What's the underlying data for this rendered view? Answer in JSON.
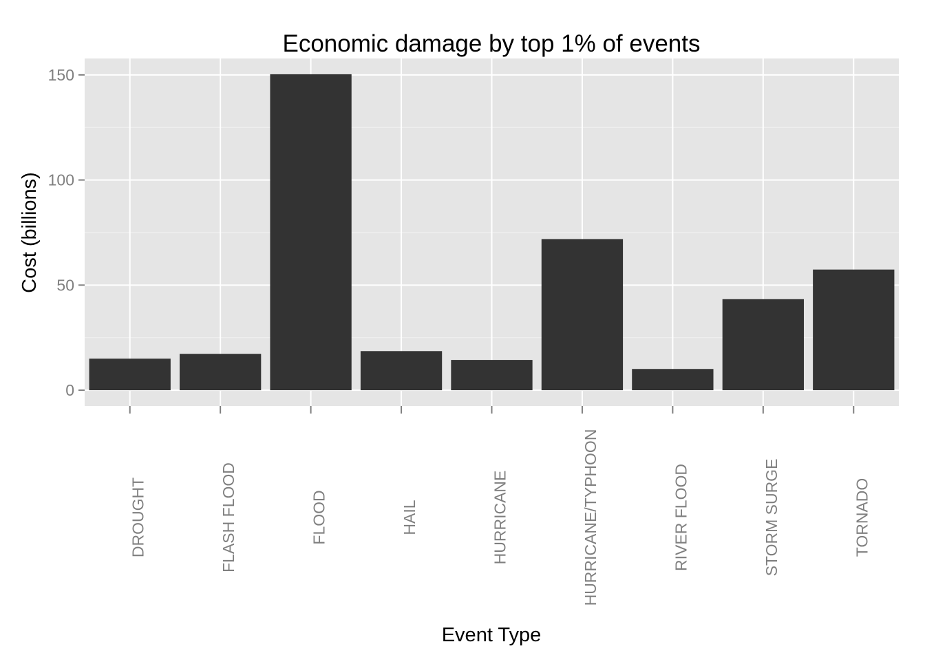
{
  "chart_data": {
    "type": "bar",
    "title": "Economic damage by top 1% of events",
    "xlabel": "Event Type",
    "ylabel": "Cost (billions)",
    "categories": [
      "DROUGHT",
      "FLASH FLOOD",
      "FLOOD",
      "HAIL",
      "HURRICANE",
      "HURRICANE/TYPHOON",
      "RIVER FLOOD",
      "STORM SURGE",
      "TORNADO"
    ],
    "values": [
      15.0,
      17.3,
      150.3,
      18.6,
      14.4,
      71.9,
      10.1,
      43.3,
      57.4
    ],
    "ylim": [
      -7.5,
      157.8
    ],
    "yticks": [
      0,
      50,
      100,
      150
    ],
    "ytick_labels": [
      "0",
      "50",
      "100",
      "150"
    ],
    "grid": true,
    "legend": "none",
    "colors": {
      "bar": "#333333",
      "panel_background": "#e5e5e5",
      "grid_major": "#ffffff",
      "grid_minor": "#f2f2f2",
      "tick_label": "#7f7f7f",
      "text": "#000000"
    }
  }
}
